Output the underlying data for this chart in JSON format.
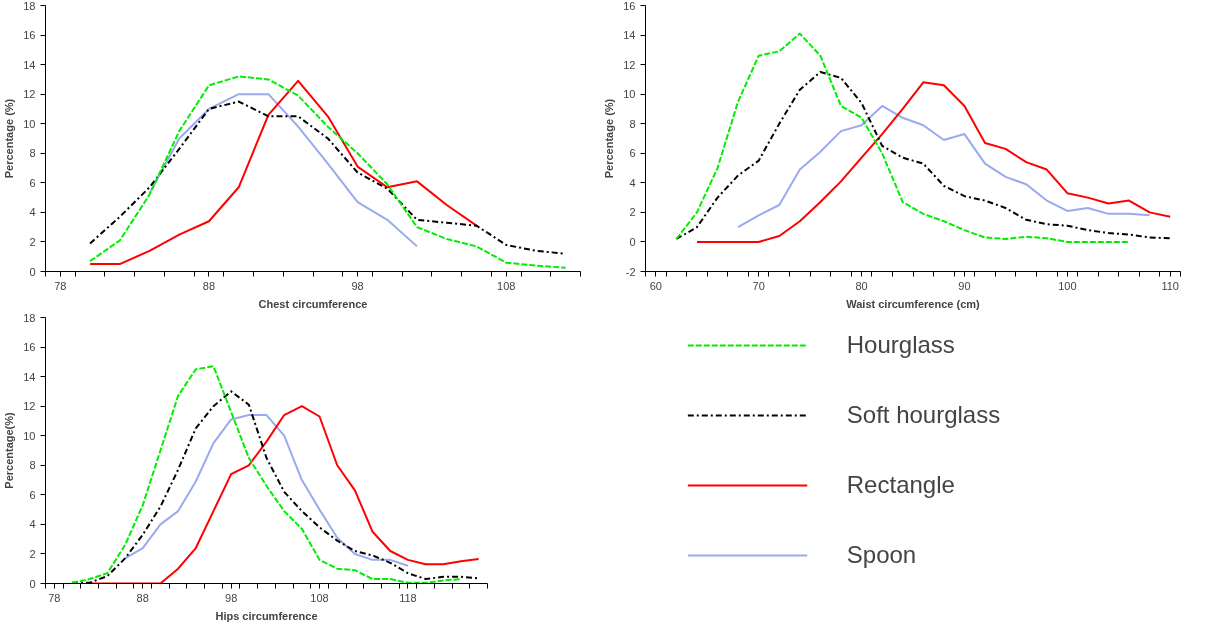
{
  "chart_data": [
    {
      "type": "line",
      "xlabel": "Chest circumference",
      "ylabel": "Percentage (%)",
      "xlim": [
        77,
        113
      ],
      "ylim": [
        0,
        18
      ],
      "yticks": [
        0,
        2,
        4,
        6,
        8,
        10,
        12,
        14,
        16,
        18
      ],
      "xticks": [
        {
          "value": 77,
          "label": null
        },
        {
          "value": 79,
          "label": null
        },
        {
          "value": 81,
          "label": null
        },
        {
          "value": 83,
          "label": null
        },
        {
          "value": 85,
          "label": null
        },
        {
          "value": 87,
          "label": null
        },
        {
          "value": 89,
          "label": null
        },
        {
          "value": 91,
          "label": null
        },
        {
          "value": 93,
          "label": null
        },
        {
          "value": 95,
          "label": null
        },
        {
          "value": 97,
          "label": null
        },
        {
          "value": 99,
          "label": null
        },
        {
          "value": 101,
          "label": null
        },
        {
          "value": 103,
          "label": null
        },
        {
          "value": 105,
          "label": null
        },
        {
          "value": 107,
          "label": null
        },
        {
          "value": 109,
          "label": null
        },
        {
          "value": 111,
          "label": null
        },
        {
          "value": 113,
          "label": null
        },
        78,
        88,
        98,
        108
      ],
      "grid": false,
      "legend": false,
      "series": [
        {
          "color": "#00ee00",
          "line_style": "dashed",
          "x": [
            80,
            82,
            84,
            86,
            88,
            90,
            92,
            94,
            96,
            98,
            100,
            102,
            104,
            106,
            108,
            110,
            112
          ],
          "values": [
            0.7,
            2.1,
            5.2,
            9.5,
            12.6,
            13.2,
            13.0,
            11.9,
            9.8,
            8.0,
            5.9,
            3.0,
            2.2,
            1.7,
            0.6,
            0.4,
            0.25
          ]
        },
        {
          "color": "#000000",
          "line_style": "dashdot",
          "x": [
            80,
            82,
            84,
            86,
            88,
            90,
            92,
            94,
            96,
            98,
            100,
            102,
            104,
            106,
            108,
            110,
            112
          ],
          "values": [
            1.9,
            3.7,
            5.7,
            8.3,
            11.0,
            11.5,
            10.5,
            10.5,
            9.0,
            6.7,
            5.6,
            3.5,
            3.3,
            3.1,
            1.8,
            1.4,
            1.2
          ]
        },
        {
          "color": "#ff0000",
          "line_style": "solid",
          "x": [
            80,
            82,
            84,
            86,
            88,
            90,
            92,
            94,
            96,
            98,
            100,
            102,
            104,
            106
          ],
          "values": [
            0.5,
            0.5,
            1.4,
            2.5,
            3.4,
            5.7,
            10.6,
            12.9,
            10.5,
            7.1,
            5.7,
            6.1,
            4.5,
            3.1
          ]
        },
        {
          "color": "#99aaee",
          "line_style": "solid",
          "x": [
            84,
            86,
            88,
            90,
            92,
            94,
            96,
            98,
            100,
            102
          ],
          "values": [
            5.3,
            9.0,
            11.0,
            12.0,
            12.0,
            9.8,
            7.3,
            4.7,
            3.5,
            1.7
          ]
        }
      ]
    },
    {
      "type": "line",
      "xlabel": "Waist circumference (cm)",
      "ylabel": "Percentage (%)",
      "xlim": [
        59,
        111
      ],
      "ylim": [
        -2,
        16
      ],
      "yticks": [
        -2,
        0,
        2,
        4,
        6,
        8,
        10,
        12,
        14,
        16
      ],
      "xticks": [
        {
          "value": 59,
          "label": null
        },
        {
          "value": 61,
          "label": null
        },
        {
          "value": 63,
          "label": null
        },
        {
          "value": 65,
          "label": null
        },
        {
          "value": 67,
          "label": null
        },
        {
          "value": 69,
          "label": null
        },
        {
          "value": 71,
          "label": null
        },
        {
          "value": 73,
          "label": null
        },
        {
          "value": 75,
          "label": null
        },
        {
          "value": 77,
          "label": null
        },
        {
          "value": 79,
          "label": null
        },
        {
          "value": 81,
          "label": null
        },
        {
          "value": 83,
          "label": null
        },
        {
          "value": 85,
          "label": null
        },
        {
          "value": 87,
          "label": null
        },
        {
          "value": 89,
          "label": null
        },
        {
          "value": 91,
          "label": null
        },
        {
          "value": 93,
          "label": null
        },
        {
          "value": 95,
          "label": null
        },
        {
          "value": 97,
          "label": null
        },
        {
          "value": 99,
          "label": null
        },
        {
          "value": 101,
          "label": null
        },
        {
          "value": 103,
          "label": null
        },
        {
          "value": 105,
          "label": null
        },
        {
          "value": 107,
          "label": null
        },
        {
          "value": 109,
          "label": null
        },
        {
          "value": 111,
          "label": null
        },
        60,
        70,
        80,
        90,
        100,
        110
      ],
      "grid": false,
      "legend": false,
      "series": [
        {
          "color": "#00ee00",
          "line_style": "dashed",
          "x": [
            62,
            64,
            66,
            68,
            70,
            72,
            74,
            76,
            78,
            80,
            82,
            84,
            86,
            88,
            90,
            92,
            94,
            96,
            98,
            100,
            102,
            104,
            106
          ],
          "values": [
            0.2,
            2.0,
            5.0,
            9.5,
            12.6,
            12.9,
            14.1,
            12.6,
            9.2,
            8.4,
            6.0,
            2.7,
            1.9,
            1.4,
            0.8,
            0.3,
            0.2,
            0.35,
            0.25,
            0,
            0,
            0,
            0
          ]
        },
        {
          "color": "#000000",
          "line_style": "dashdot",
          "x": [
            62,
            64,
            66,
            68,
            70,
            72,
            74,
            76,
            78,
            80,
            82,
            84,
            86,
            88,
            90,
            92,
            94,
            96,
            98,
            100,
            102,
            104,
            106,
            108,
            110
          ],
          "values": [
            0.2,
            1.0,
            3.0,
            4.5,
            5.5,
            8.0,
            10.3,
            11.5,
            11.1,
            9.4,
            6.5,
            5.7,
            5.3,
            3.8,
            3.1,
            2.8,
            2.3,
            1.5,
            1.2,
            1.1,
            0.8,
            0.6,
            0.5,
            0.3,
            0.25
          ]
        },
        {
          "color": "#ff0000",
          "line_style": "solid",
          "x": [
            64,
            66,
            68,
            70,
            72,
            74,
            76,
            78,
            80,
            82,
            84,
            86,
            88,
            90,
            92,
            94,
            96,
            98,
            100,
            102,
            104,
            106,
            108,
            110
          ],
          "values": [
            0,
            0,
            0,
            0,
            0.4,
            1.4,
            2.7,
            4.1,
            5.7,
            7.3,
            9.0,
            10.8,
            10.6,
            9.2,
            6.7,
            6.3,
            5.4,
            4.9,
            3.3,
            3.0,
            2.6,
            2.8,
            2.0,
            1.7
          ]
        },
        {
          "color": "#99aaee",
          "line_style": "solid",
          "x": [
            68,
            70,
            72,
            74,
            76,
            78,
            80,
            82,
            84,
            86,
            88,
            90,
            92,
            94,
            96,
            98,
            100,
            102,
            104,
            106,
            108
          ],
          "values": [
            1.0,
            1.8,
            2.5,
            4.9,
            6.1,
            7.5,
            7.9,
            9.2,
            8.4,
            7.9,
            6.9,
            7.3,
            5.3,
            4.4,
            3.9,
            2.8,
            2.1,
            2.3,
            1.9,
            1.9,
            1.8
          ]
        }
      ]
    },
    {
      "type": "line",
      "xlabel": "Hips circumference",
      "ylabel": "Percentage(%)",
      "xlim": [
        77,
        127
      ],
      "ylim": [
        0,
        18
      ],
      "yticks": [
        0,
        2,
        4,
        6,
        8,
        10,
        12,
        14,
        16,
        18
      ],
      "xticks": [
        {
          "value": 77,
          "label": null
        },
        {
          "value": 79,
          "label": null
        },
        {
          "value": 81,
          "label": null
        },
        {
          "value": 83,
          "label": null
        },
        {
          "value": 85,
          "label": null
        },
        {
          "value": 87,
          "label": null
        },
        {
          "value": 89,
          "label": null
        },
        {
          "value": 91,
          "label": null
        },
        {
          "value": 93,
          "label": null
        },
        {
          "value": 95,
          "label": null
        },
        {
          "value": 97,
          "label": null
        },
        {
          "value": 99,
          "label": null
        },
        {
          "value": 101,
          "label": null
        },
        {
          "value": 103,
          "label": null
        },
        {
          "value": 105,
          "label": null
        },
        {
          "value": 107,
          "label": null
        },
        {
          "value": 109,
          "label": null
        },
        {
          "value": 111,
          "label": null
        },
        {
          "value": 113,
          "label": null
        },
        {
          "value": 115,
          "label": null
        },
        {
          "value": 117,
          "label": null
        },
        {
          "value": 119,
          "label": null
        },
        {
          "value": 121,
          "label": null
        },
        {
          "value": 123,
          "label": null
        },
        {
          "value": 125,
          "label": null
        },
        {
          "value": 127,
          "label": null
        },
        78,
        88,
        98,
        108,
        118
      ],
      "grid": false,
      "legend": "right",
      "series": [
        {
          "name": "Hourglass",
          "color": "#00ee00",
          "line_style": "dashed",
          "x": [
            80,
            82,
            84,
            86,
            88,
            90,
            92,
            94,
            96,
            98,
            100,
            102,
            104,
            106,
            108,
            110,
            112,
            114,
            116,
            118,
            120,
            122,
            124
          ],
          "values": [
            0.05,
            0.3,
            0.7,
            2.6,
            5.3,
            9.0,
            12.7,
            14.5,
            14.7,
            11.6,
            8.5,
            6.6,
            4.9,
            3.7,
            1.6,
            1.0,
            0.9,
            0.3,
            0.3,
            0.05,
            0.05,
            0.2,
            0.3
          ]
        },
        {
          "name": "Soft hourglass",
          "color": "#000000",
          "line_style": "dashdot",
          "x": [
            80,
            82,
            84,
            86,
            88,
            90,
            92,
            94,
            96,
            98,
            100,
            102,
            104,
            106,
            108,
            110,
            112,
            114,
            116,
            118,
            120,
            122,
            124,
            126
          ],
          "values": [
            0.05,
            0.05,
            0.5,
            1.7,
            3.3,
            5.2,
            7.7,
            10.5,
            12.0,
            13.0,
            12.1,
            8.5,
            6.2,
            4.9,
            3.8,
            2.9,
            2.2,
            1.9,
            1.4,
            0.7,
            0.3,
            0.45,
            0.45,
            0.35
          ]
        },
        {
          "name": "Rectangle",
          "color": "#ff0000",
          "line_style": "solid",
          "x": [
            82,
            84,
            86,
            88,
            90,
            92,
            94,
            96,
            98,
            100,
            102,
            104,
            106,
            108,
            110,
            112,
            114,
            116,
            118,
            120,
            122,
            124,
            126
          ],
          "values": [
            0,
            0,
            0,
            0,
            0,
            1.0,
            2.4,
            4.9,
            7.4,
            8.0,
            9.6,
            11.4,
            12.0,
            11.3,
            8.0,
            6.3,
            3.5,
            2.2,
            1.6,
            1.3,
            1.3,
            1.5,
            1.65
          ]
        },
        {
          "name": "Spoon",
          "color": "#99aaee",
          "line_style": "solid",
          "x": [
            86,
            88,
            90,
            92,
            94,
            96,
            98,
            100,
            102,
            104,
            106,
            108,
            110,
            112,
            114,
            116,
            118
          ],
          "values": [
            1.7,
            2.4,
            4.0,
            4.9,
            6.9,
            9.5,
            11.1,
            11.4,
            11.4,
            10.0,
            7.0,
            5.0,
            3.1,
            2.0,
            1.6,
            1.6,
            1.2
          ]
        }
      ]
    }
  ]
}
